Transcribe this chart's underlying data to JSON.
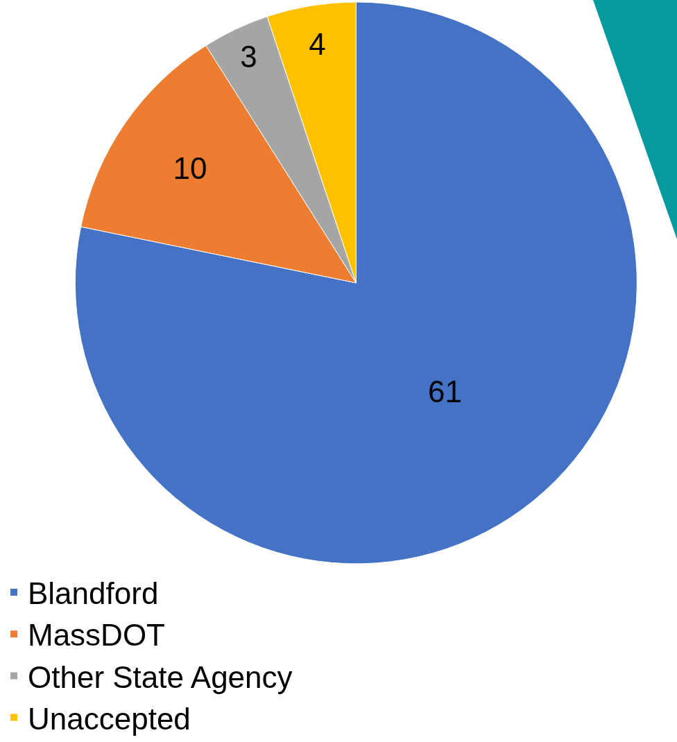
{
  "chart_data": {
    "type": "pie",
    "categories": [
      "Blandford",
      "MassDOT",
      "Other State Agency",
      "Unaccepted"
    ],
    "values": [
      61,
      10,
      3,
      4
    ],
    "colors": [
      "#4472c4",
      "#ed7d31",
      "#a5a5a5",
      "#ffc000"
    ],
    "data_labels": true,
    "legend": "bottom"
  }
}
